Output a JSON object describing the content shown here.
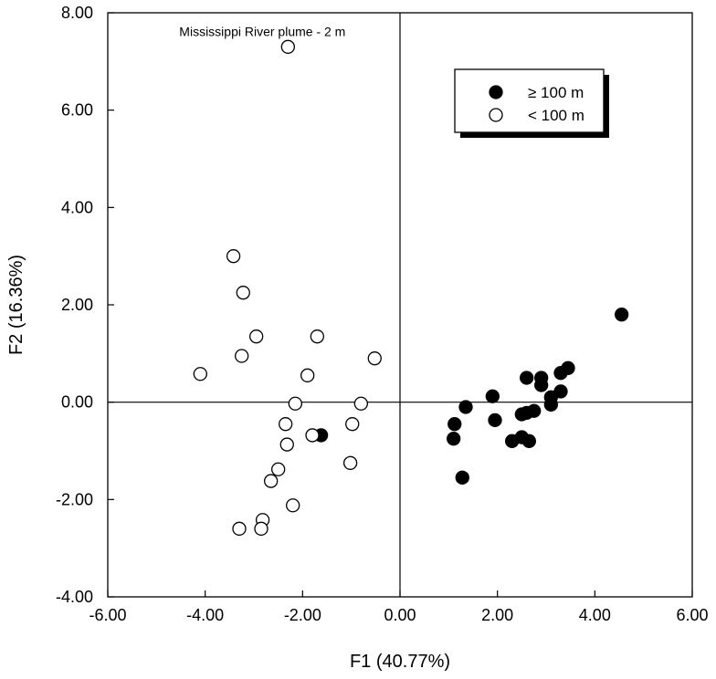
{
  "chart_data": {
    "type": "scatter",
    "xlabel": "F1 (40.77%)",
    "ylabel": "F2 (16.36%)",
    "xlim": [
      -6,
      6
    ],
    "ylim": [
      -4,
      8
    ],
    "x_ticks": [
      -6,
      -4,
      -2,
      0,
      2,
      4,
      6
    ],
    "y_ticks": [
      -4,
      -2,
      0,
      2,
      4,
      6,
      8
    ],
    "x_tick_labels": [
      "-6.00",
      "-4.00",
      "-2.00",
      "0.00",
      "2.00",
      "4.00",
      "6.00"
    ],
    "y_tick_labels": [
      "-4.00",
      "-2.00",
      "0.00",
      "2.00",
      "4.00",
      "6.00",
      "8.00"
    ],
    "grid": false,
    "zero_lines": true,
    "legend_position": "top-right",
    "annotation": {
      "text": "Mississippi River plume - 2 m",
      "x": -2.3,
      "y": 7.3
    },
    "series": [
      {
        "name": "≥ 100 m",
        "marker": "filled-circle",
        "color": "#000000",
        "points": [
          [
            4.55,
            1.8
          ],
          [
            3.45,
            0.7
          ],
          [
            3.3,
            0.6
          ],
          [
            2.9,
            0.5
          ],
          [
            2.6,
            0.5
          ],
          [
            2.9,
            0.35
          ],
          [
            3.3,
            0.22
          ],
          [
            1.9,
            0.12
          ],
          [
            3.1,
            0.1
          ],
          [
            3.1,
            -0.05
          ],
          [
            1.35,
            -0.1
          ],
          [
            2.75,
            -0.18
          ],
          [
            2.6,
            -0.22
          ],
          [
            2.5,
            -0.25
          ],
          [
            1.95,
            -0.37
          ],
          [
            1.12,
            -0.45
          ],
          [
            1.1,
            -0.75
          ],
          [
            2.5,
            -0.72
          ],
          [
            2.3,
            -0.8
          ],
          [
            2.65,
            -0.8
          ],
          [
            1.28,
            -1.55
          ],
          [
            -1.62,
            -0.68
          ]
        ]
      },
      {
        "name": "< 100 m",
        "marker": "open-circle",
        "color": "#000000",
        "points": [
          [
            -2.3,
            7.3
          ],
          [
            -3.42,
            3.0
          ],
          [
            -3.22,
            2.25
          ],
          [
            -2.95,
            1.35
          ],
          [
            -1.7,
            1.35
          ],
          [
            -3.25,
            0.95
          ],
          [
            -0.52,
            0.9
          ],
          [
            -4.1,
            0.58
          ],
          [
            -1.9,
            0.55
          ],
          [
            -2.15,
            -0.03
          ],
          [
            -0.8,
            -0.03
          ],
          [
            -2.35,
            -0.45
          ],
          [
            -0.98,
            -0.45
          ],
          [
            -1.8,
            -0.68
          ],
          [
            -2.32,
            -0.87
          ],
          [
            -1.02,
            -1.25
          ],
          [
            -2.5,
            -1.38
          ],
          [
            -2.65,
            -1.62
          ],
          [
            -2.2,
            -2.12
          ],
          [
            -2.82,
            -2.42
          ],
          [
            -3.3,
            -2.6
          ],
          [
            -2.85,
            -2.6
          ]
        ]
      }
    ]
  }
}
